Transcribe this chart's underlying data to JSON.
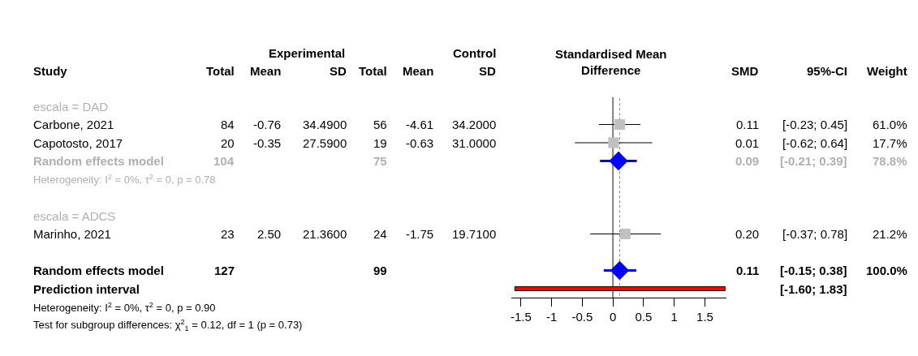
{
  "chart_data": [
    {
      "type": "other",
      "categories": [
        "Study",
        "Total",
        "Mean",
        "SD",
        "Total",
        "Mean",
        "SD",
        "SMD",
        "95%-CI",
        "Weight"
      ],
      "annotations": [
        "Experimental",
        "Control"
      ],
      "colors": [
        "#b0b0b0",
        "#000000",
        "#000000",
        "#b0b0b0",
        "#b0b0b0",
        "#000000",
        "#b0b0b0",
        "#000000",
        "#000000",
        "#000000",
        "#000000",
        "#000000",
        "#000000"
      ],
      "cell_labels": [
        [
          "escala = DAD",
          null,
          null,
          null,
          null,
          null,
          null,
          null,
          null,
          null
        ],
        [
          "Carbone, 2021",
          "84",
          "-0.76",
          "34.4900",
          "56",
          "-4.61",
          "34.2000",
          "0.11",
          "[-0.23; 0.45]",
          "61.0%"
        ],
        [
          "Capotosto, 2017",
          "20",
          "-0.35",
          "27.5900",
          "19",
          "-0.63",
          "31.0000",
          "0.01",
          "[-0.62; 0.64]",
          "17.7%"
        ],
        [
          "Random effects model",
          "104",
          null,
          null,
          "75",
          null,
          null,
          "0.09",
          "[-0.21; 0.39]",
          "78.8%"
        ],
        [
          "Heterogeneity: I$^{2}$ = 0%, τ$^{2}$ = 0, p = 0.78",
          null,
          null,
          null,
          null,
          null,
          null,
          null,
          null,
          null
        ],
        [
          null,
          null,
          null,
          null,
          null,
          null,
          null,
          null,
          null,
          null
        ],
        [
          "escala = ADCS",
          null,
          null,
          null,
          null,
          null,
          null,
          null,
          null,
          null
        ],
        [
          "Marinho, 2021",
          "23",
          "2.50",
          "21.3600",
          "24",
          "-1.75",
          "19.7100",
          "0.20",
          "[-0.37; 0.78]",
          "21.2%"
        ],
        [
          null,
          null,
          null,
          null,
          null,
          null,
          null,
          null,
          null,
          null
        ],
        [
          "Random effects model",
          "127",
          null,
          null,
          "99",
          null,
          null,
          "0.11",
          "[-0.15; 0.38]",
          "100.0%"
        ],
        [
          "Prediction interval",
          null,
          null,
          null,
          null,
          null,
          null,
          null,
          "[-1.60; 1.83]",
          null
        ],
        [
          "Heterogeneity: I$^{2}$ = 0%, τ$^{2}$ = 0, p = 0.90",
          null,
          null,
          null,
          null,
          null,
          null,
          null,
          null,
          null
        ],
        [
          "Test for subgroup differences: χ$^{2}$$_{1}$ = 0.12, df = 1 (p = 0.73)",
          null,
          null,
          null,
          null,
          null,
          null,
          null,
          null,
          null
        ]
      ]
    },
    {
      "type": "scatter",
      "title": "Standardised Mean\nDifference",
      "orientation": "horizontal",
      "categories": [
        null,
        null,
        null,
        null,
        null,
        null,
        null,
        null,
        null,
        null,
        null
      ],
      "xlim": [
        -1.65,
        1.85
      ],
      "xticks": [
        -1.5,
        -1,
        -0.5,
        0,
        0.5,
        1,
        1.5
      ],
      "tick_labels": "x",
      "grid": false,
      "ref_lines": [
        {
          "axis": "x",
          "value": 0,
          "color": "#808080",
          "line_style": "solid"
        },
        {
          "axis": "x",
          "value": 0.11,
          "color": "#808080",
          "line_style": "dotted"
        }
      ],
      "series": [
        {
          "type": "scatter",
          "marker": "square",
          "color": "#c0c0c0",
          "values": [
            null,
            0.11,
            0.01,
            null,
            null,
            null,
            null,
            0.2,
            null,
            null,
            null
          ],
          "errors": [
            null,
            [
              -0.23,
              0.45
            ],
            [
              -0.62,
              0.64
            ],
            null,
            null,
            null,
            null,
            [
              -0.37,
              0.78
            ],
            null,
            null,
            null
          ]
        },
        {
          "type": "scatter",
          "marker": "diamond",
          "color": "#0000ff",
          "values": [
            null,
            null,
            null,
            0.09,
            null,
            null,
            null,
            null,
            null,
            0.11,
            null
          ],
          "errors": [
            null,
            null,
            null,
            [
              -0.21,
              0.39
            ],
            null,
            null,
            null,
            null,
            null,
            [
              -0.15,
              0.38
            ],
            null
          ]
        },
        {
          "type": "bar",
          "color": "#ff0000",
          "base": [
            null,
            null,
            null,
            null,
            null,
            null,
            null,
            null,
            null,
            null,
            -1.6
          ],
          "values": [
            null,
            null,
            null,
            null,
            null,
            null,
            null,
            null,
            null,
            null,
            3.43
          ]
        }
      ]
    }
  ]
}
